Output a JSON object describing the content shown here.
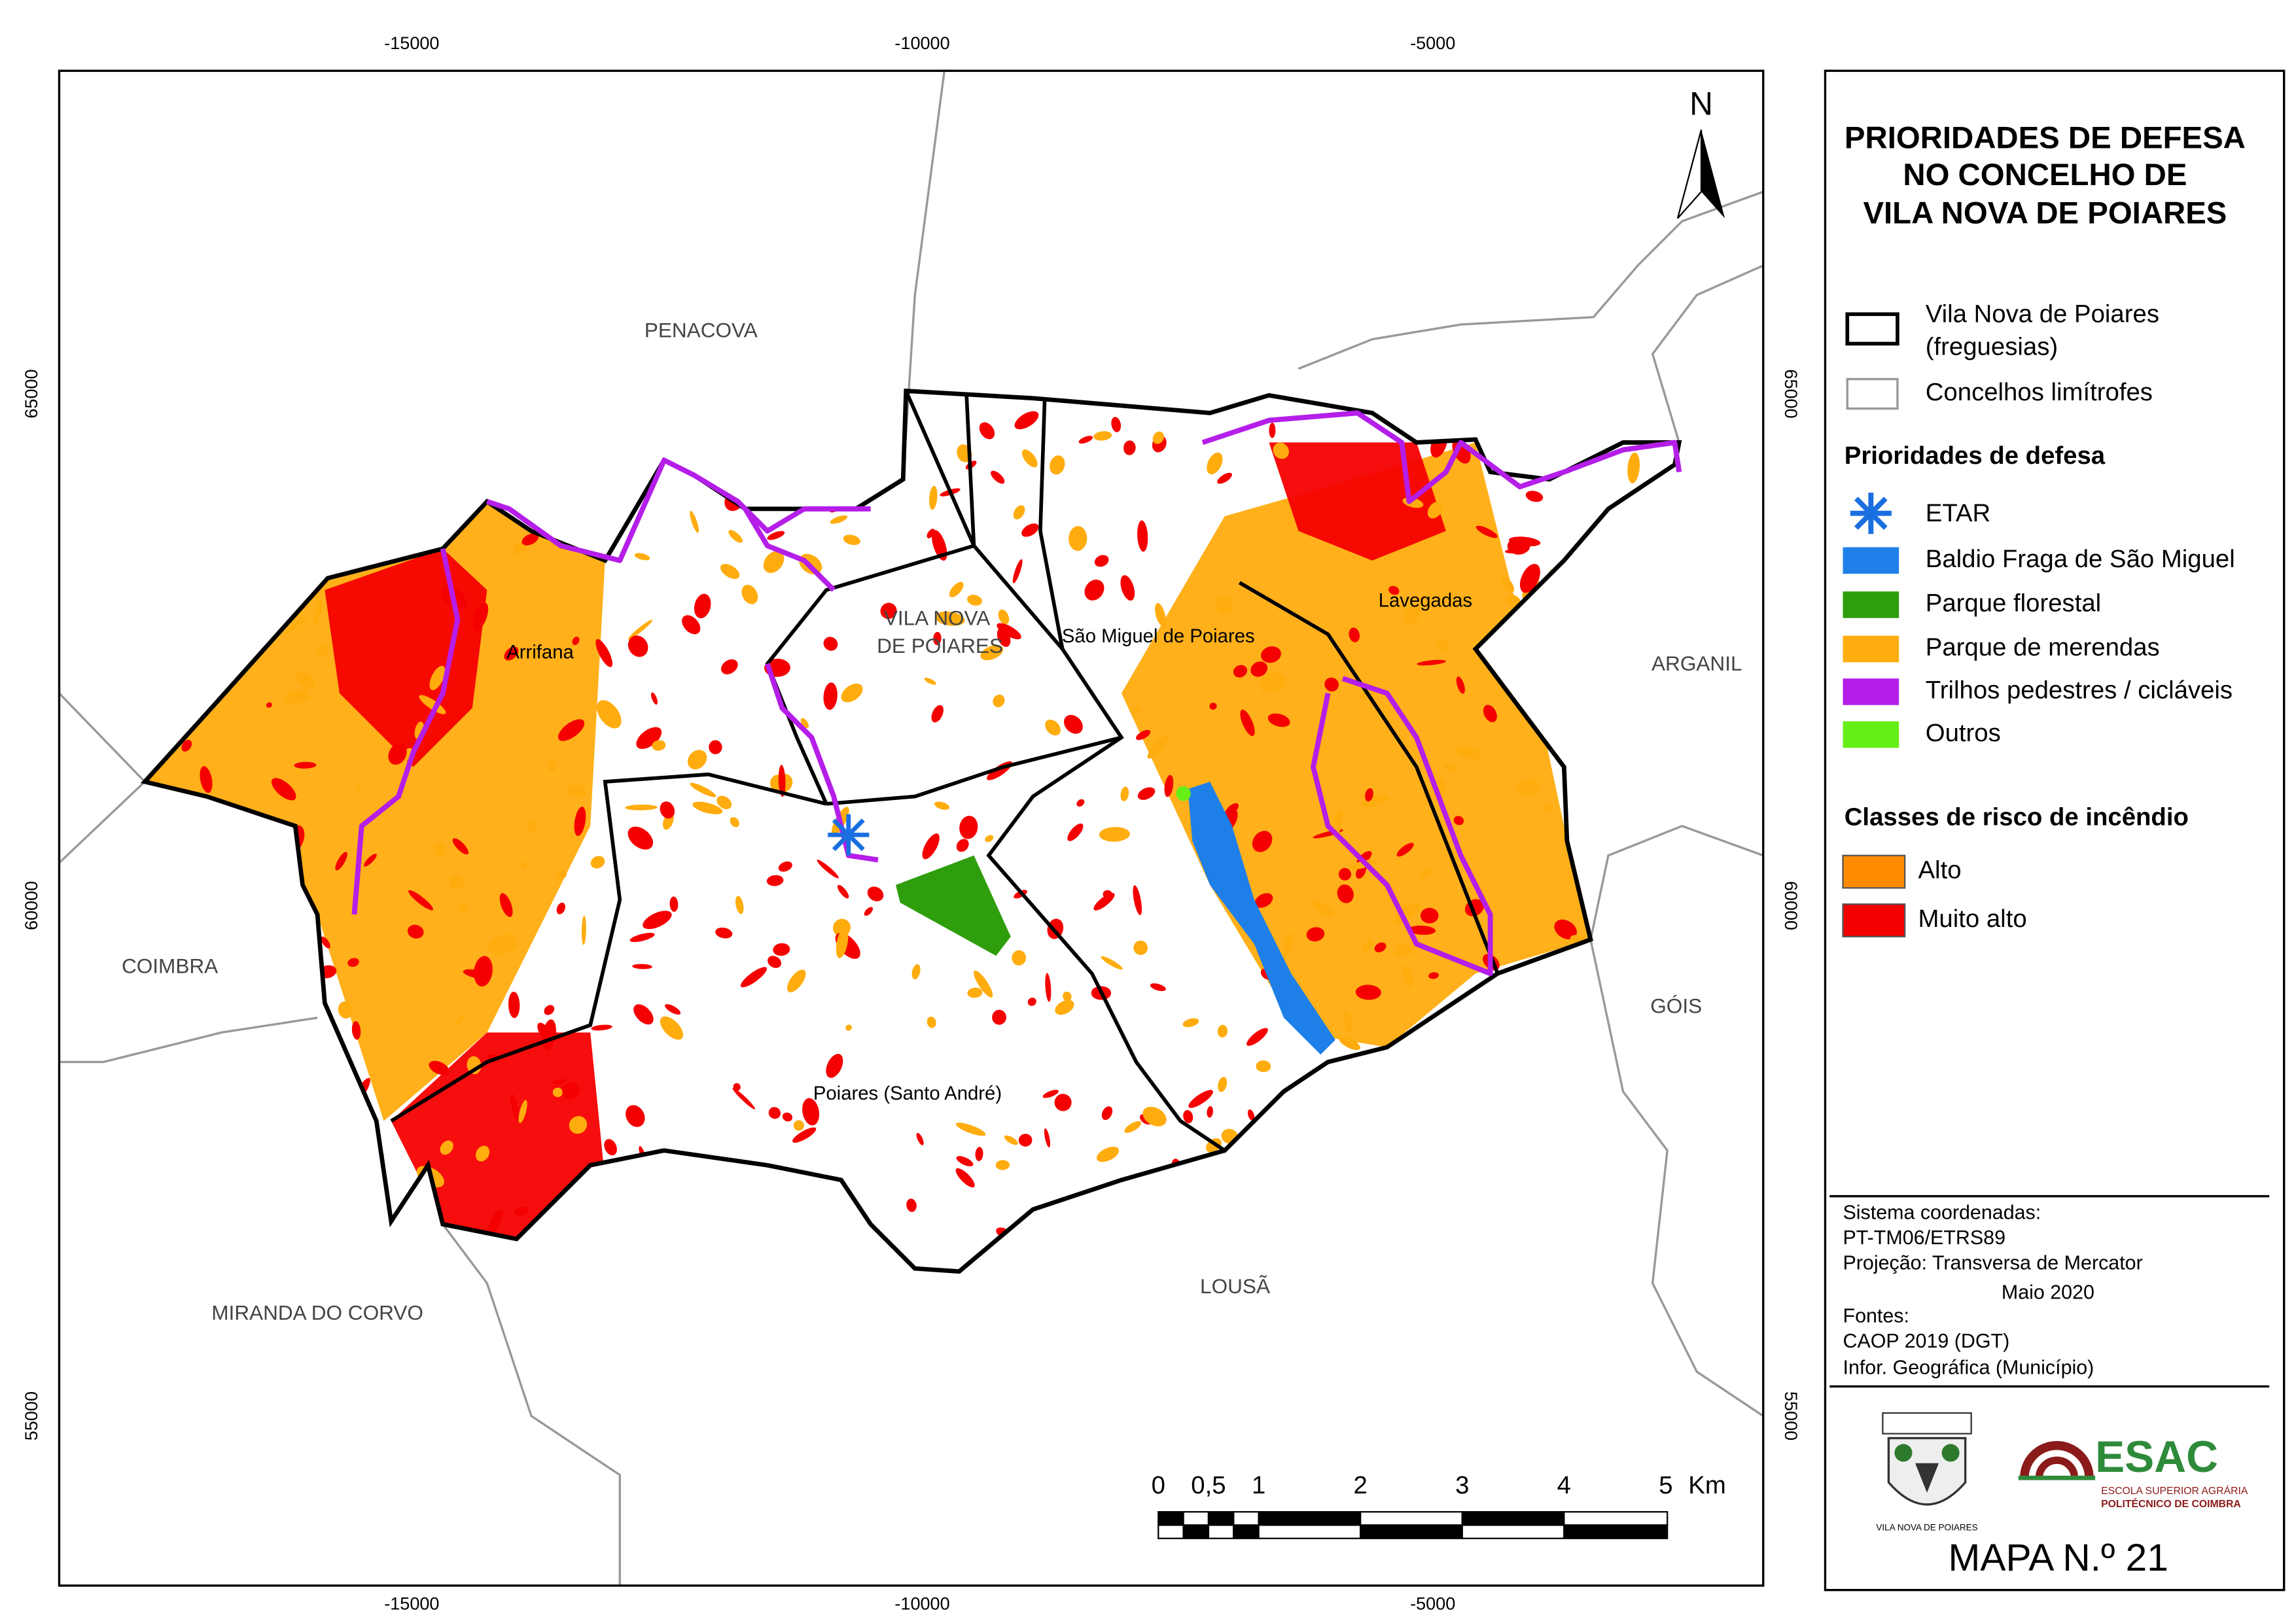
{
  "title": [
    "PRIORIDADES DE DEFESA",
    "NO CONCELHO DE",
    "VILA NOVA DE POIARES"
  ],
  "axes": {
    "x_ticks": [
      "-15000",
      "-10000",
      "-5000"
    ],
    "y_ticks": [
      "65000",
      "60000",
      "55000"
    ]
  },
  "north": "N",
  "map_labels": [
    "PENACOVA",
    "VILA NOVA",
    "DE POIARES",
    "São Miguel de Poiares",
    "Arrifana",
    "Lavegadas",
    "ARGANIL",
    "COIMBRA",
    "GÓIS",
    "Poiares (Santo André)",
    "LOUSÃ",
    "MIRANDA DO CORVO"
  ],
  "legend": {
    "boundary": [
      "Vila Nova de Poiares",
      "(freguesias)"
    ],
    "neighbors": "Concelhos limítrofes",
    "priorities_title": "Prioridades de defesa",
    "priorities": [
      "ETAR",
      "Baldio Fraga de São Miguel",
      "Parque florestal",
      "Parque de merendas",
      "Trilhos pedestres / cicláveis",
      "Outros"
    ],
    "risk_title": "Classes de risco de incêndio",
    "risk": [
      "Alto",
      "Muito alto"
    ]
  },
  "info": [
    "Sistema coordenadas:",
    "PT-TM06/ETRS89",
    "Projeção: Transversa de Mercator",
    "Maio 2020",
    "Fontes:",
    "CAOP 2019 (DGT)",
    "Infor. Geográfica (Município)"
  ],
  "logos": [
    "ESAC",
    "ESCOLA SUPERIOR AGRÁRIA",
    "POLITÉCNICO DE COIMBRA",
    "VILA NOVA DE POIARES"
  ],
  "scale_bar": {
    "labels": [
      "0",
      "0,5",
      "1",
      "2",
      "3",
      "4",
      "5"
    ],
    "unit": "Km"
  },
  "map_number": "MAPA N.º 21"
}
